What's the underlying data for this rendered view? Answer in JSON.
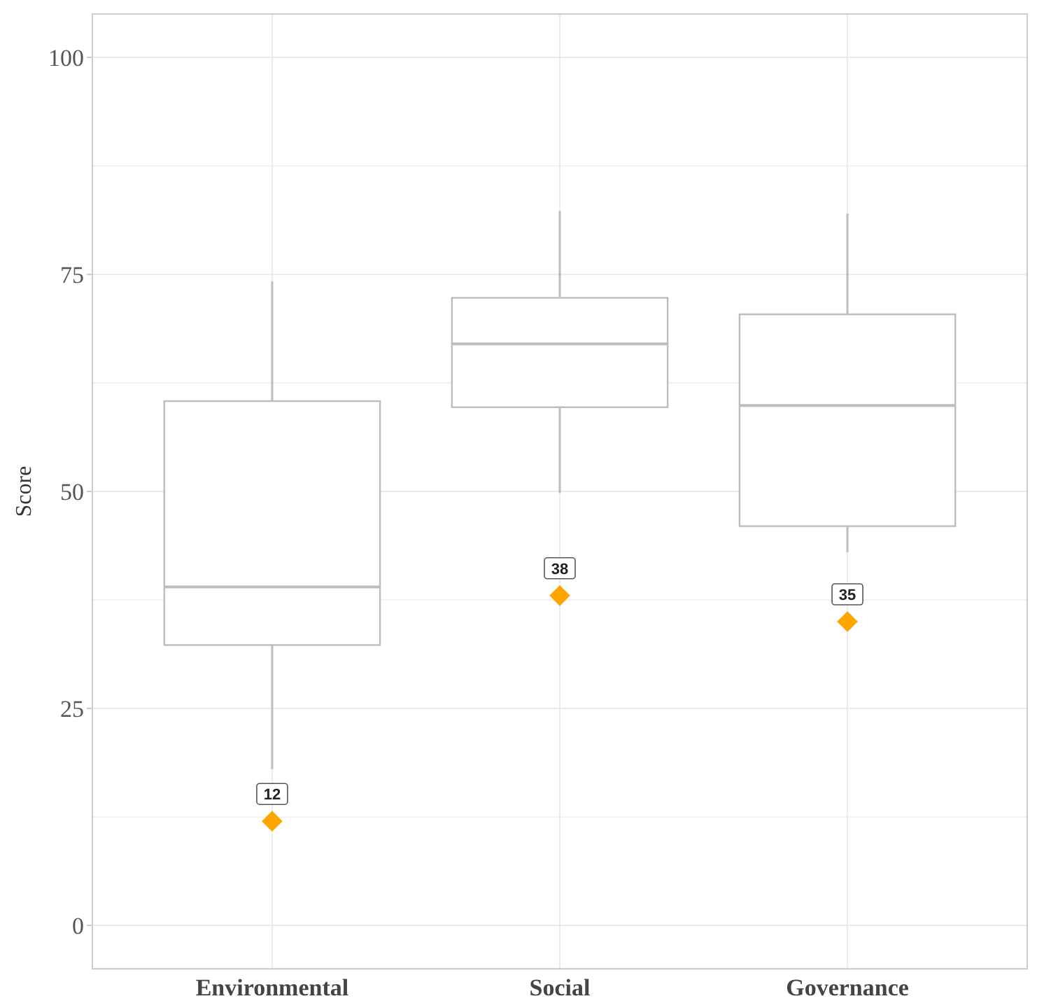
{
  "chart_data": {
    "type": "box",
    "ylabel": "Score",
    "categories": [
      "Environmental",
      "Social",
      "Governance"
    ],
    "boxes": [
      {
        "low": 18,
        "q1": 32.3,
        "median": 39,
        "q3": 60.4,
        "high": 74.2
      },
      {
        "low": 49.8,
        "q1": 59.7,
        "median": 67,
        "q3": 72.3,
        "high": 82.3
      },
      {
        "low": 43,
        "q1": 46,
        "median": 59.9,
        "q3": 70.4,
        "high": 82
      }
    ],
    "color": "#bdbdbd",
    "series": [
      {
        "type": "scatter",
        "x": [
          "Environmental",
          "Social",
          "Governance"
        ],
        "values": [
          12,
          38,
          35
        ],
        "color": "#ffa500",
        "marker": "diamond"
      }
    ],
    "data_labels": true,
    "ylim": [
      -5,
      105
    ],
    "yticks": [
      0,
      25,
      50,
      75,
      100
    ],
    "grid": true
  }
}
